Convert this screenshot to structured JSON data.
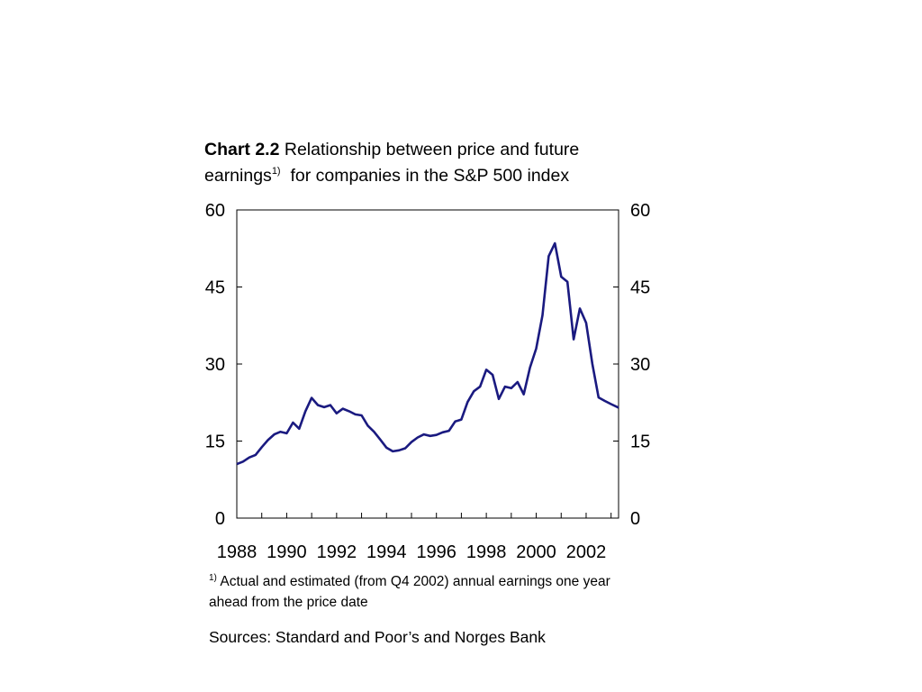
{
  "chart_data": {
    "type": "line",
    "title_bold": "Chart 2.2",
    "title_line1": "Relationship between price and future",
    "title_word": "earnings",
    "title_sup": "1)",
    "title_line2": "for companies in the S&P 500 index",
    "xlim": [
      1988,
      2003.3
    ],
    "ylim": [
      0,
      60
    ],
    "y_ticks": [
      0,
      15,
      30,
      45,
      60
    ],
    "y_tick_labels": [
      "0",
      "15",
      "30",
      "45",
      "60"
    ],
    "x_ticks": [
      1988,
      1990,
      1992,
      1994,
      1996,
      1998,
      2000,
      2002
    ],
    "x_tick_labels": [
      "1988",
      "1990",
      "1992",
      "1994",
      "1996",
      "1998",
      "2000",
      "2002"
    ],
    "grid": false,
    "line_color": "#1a1a80",
    "series": [
      {
        "x": [
          1988.0,
          1988.25,
          1988.5,
          1988.75,
          1989.0,
          1989.25,
          1989.5,
          1989.75,
          1990.0,
          1990.25,
          1990.5,
          1990.75,
          1991.0,
          1991.25,
          1991.5,
          1991.75,
          1992.0,
          1992.25,
          1992.5,
          1992.75,
          1993.0,
          1993.25,
          1993.5,
          1993.75,
          1994.0,
          1994.25,
          1994.5,
          1994.75,
          1995.0,
          1995.25,
          1995.5,
          1995.75,
          1996.0,
          1996.25,
          1996.5,
          1996.75,
          1997.0,
          1997.25,
          1997.5,
          1997.75,
          1998.0,
          1998.25,
          1998.5,
          1998.75,
          1999.0,
          1999.25,
          1999.5,
          1999.75,
          2000.0,
          2000.25,
          2000.5,
          2000.75,
          2001.0,
          2001.25,
          2001.5,
          2001.75,
          2002.0,
          2002.25,
          2002.5,
          2002.75,
          2003.0,
          2003.3
        ],
        "values": [
          10.5,
          11.0,
          11.8,
          12.3,
          13.8,
          15.2,
          16.3,
          16.8,
          16.5,
          18.6,
          17.4,
          20.8,
          23.4,
          22.0,
          21.6,
          22.0,
          20.4,
          21.3,
          20.8,
          20.2,
          20.0,
          18.0,
          16.8,
          15.3,
          13.7,
          13.0,
          13.2,
          13.6,
          14.8,
          15.7,
          16.3,
          16.0,
          16.2,
          16.7,
          17.0,
          18.8,
          19.2,
          22.6,
          24.7,
          25.6,
          28.9,
          27.9,
          23.2,
          25.6,
          25.3,
          26.5,
          24.1,
          29.3,
          33.0,
          39.5,
          51.0,
          53.5,
          47.0,
          46.0,
          34.8,
          40.8,
          38.0,
          30.0,
          23.5,
          22.8,
          22.2,
          21.5
        ]
      }
    ]
  },
  "footnote": {
    "marker": "1)",
    "text": "Actual and estimated (from Q4 2002) annual earnings one year ahead from the price date"
  },
  "sources": "Sources: Standard and Poor’s and Norges Bank"
}
